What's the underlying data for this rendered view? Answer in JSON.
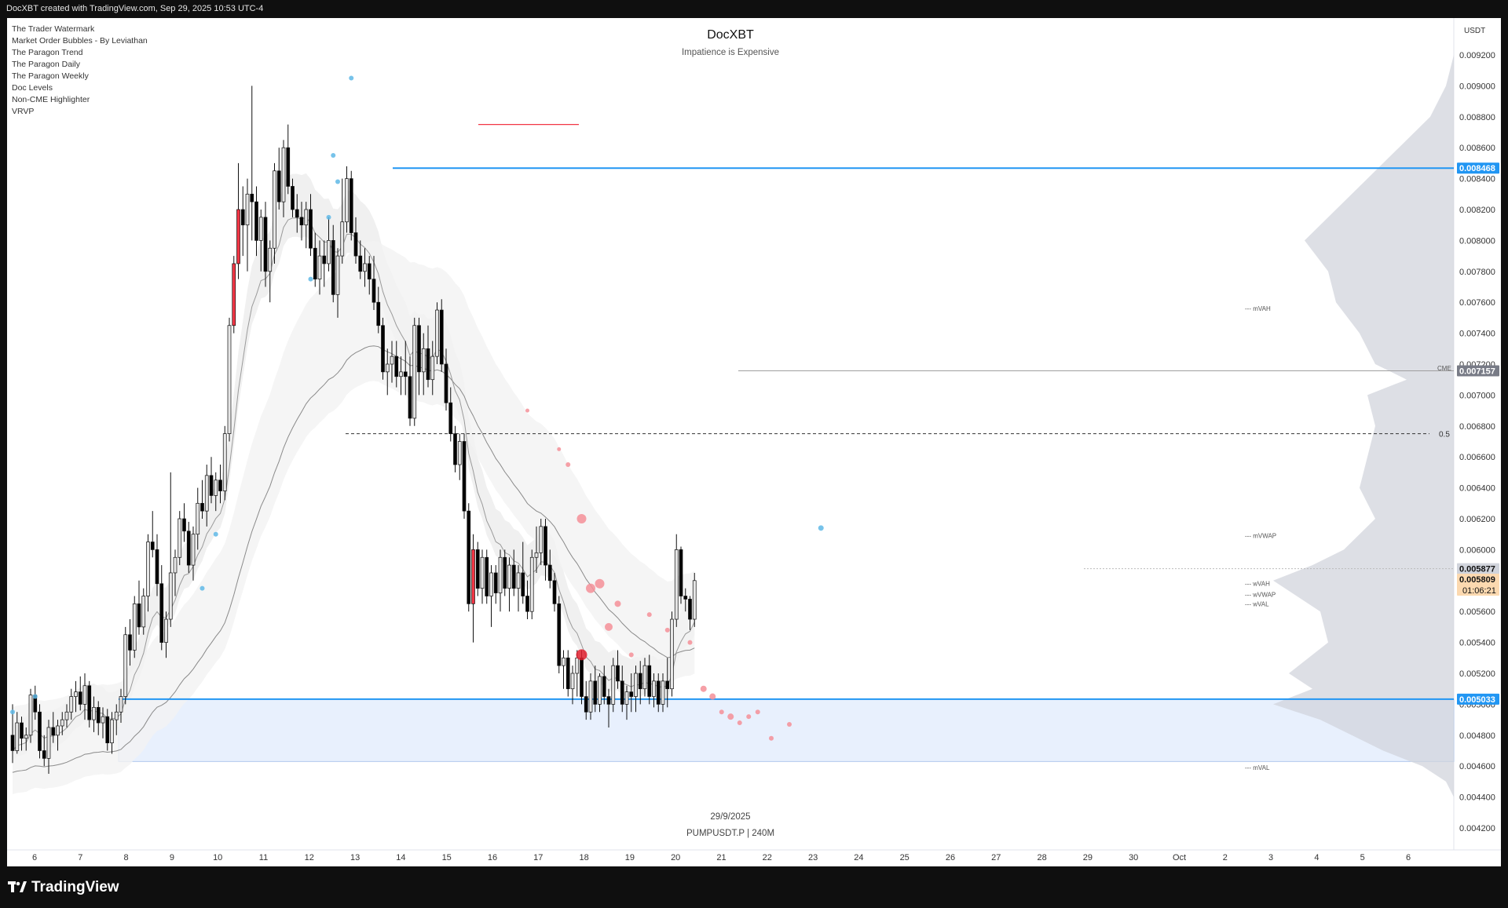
{
  "header": {
    "attribution": "DocXBT created with TradingView.com, Sep 29, 2025 10:53 UTC-4"
  },
  "indicators": [
    "The Trader Watermark",
    "Market Order Bubbles - By Leviathan",
    "The Paragon Trend",
    "The Paragon Daily",
    "The Paragon Weekly",
    "Doc Levels",
    "Non-CME Highlighter",
    "VRVP"
  ],
  "title": {
    "main": "DocXBT",
    "sub": "Impatience is Expensive"
  },
  "footer": {
    "date": "29/9/2025",
    "symbol": "PUMPUSDT.P | 240M"
  },
  "brand": {
    "name": "TradingView",
    "colors": {
      "background": "#0f0f0f",
      "chart_bg": "#ffffff",
      "level_blue": "#2196f3",
      "bear_candle": "#000000",
      "bull_candle": "#e6e6e6",
      "red_candle": "#f23645"
    }
  },
  "chart_data": {
    "type": "candlestick",
    "currency": "USDT",
    "timeframe": "240M",
    "ylim": [
      0.0041,
      0.0093
    ],
    "y_ticks": [
      "0.009200",
      "0.009000",
      "0.008800",
      "0.008600",
      "0.008400",
      "0.008200",
      "0.008000",
      "0.007800",
      "0.007600",
      "0.007400",
      "0.007200",
      "0.007000",
      "0.006800",
      "0.006600",
      "0.006400",
      "0.006200",
      "0.006000",
      "0.005800",
      "0.005600",
      "0.005400",
      "0.005200",
      "0.005000",
      "0.004800",
      "0.004600",
      "0.004400",
      "0.004200"
    ],
    "x_ticks": [
      "6",
      "7",
      "8",
      "9",
      "10",
      "11",
      "12",
      "13",
      "14",
      "15",
      "16",
      "17",
      "18",
      "19",
      "20",
      "21",
      "22",
      "23",
      "24",
      "25",
      "26",
      "27",
      "28",
      "29",
      "30",
      "Oct",
      "2",
      "3",
      "4",
      "5",
      "6"
    ],
    "price_tags": [
      {
        "label": "0.008468",
        "value": 0.008468,
        "color": "#2196f3"
      },
      {
        "label": "0.007157",
        "value": 0.007157,
        "color": "#787b86"
      },
      {
        "label": "0.005877",
        "value": 0.005877,
        "color": "#d1d4dc"
      },
      {
        "label": "0.005809",
        "value": 0.005809,
        "color": "#fcd9b0",
        "sub": "01:06:21"
      },
      {
        "label": "0.005033",
        "value": 0.005033,
        "color": "#2196f3"
      }
    ],
    "levels": [
      {
        "name": "resistance",
        "value": 0.008468
      },
      {
        "name": "support",
        "value": 0.005033
      },
      {
        "name": "range-low",
        "value": 0.00463
      },
      {
        "name": "cme-gap",
        "value": 0.007157
      },
      {
        "name": "fib-0.5",
        "value": 0.00675,
        "label": "0.5"
      }
    ],
    "annotations": [
      {
        "text": "mVAH",
        "value": 0.00756
      },
      {
        "text": "CME",
        "value": 0.007175
      },
      {
        "text": "mVWAP",
        "value": 0.00609
      },
      {
        "text": "wVAH",
        "value": 0.00578
      },
      {
        "text": "wVWAP",
        "value": 0.00571
      },
      {
        "text": "wVAL",
        "value": 0.00565
      },
      {
        "text": "mVAL",
        "value": 0.00459
      }
    ],
    "candles": [
      [
        0.0048,
        0.005,
        0.00462,
        0.0047
      ],
      [
        0.0047,
        0.00495,
        0.00468,
        0.00488
      ],
      [
        0.00488,
        0.00492,
        0.0047,
        0.00478
      ],
      [
        0.00478,
        0.00485,
        0.0047,
        0.0048
      ],
      [
        0.0048,
        0.0051,
        0.00475,
        0.00506
      ],
      [
        0.00506,
        0.00512,
        0.0049,
        0.00495
      ],
      [
        0.00495,
        0.005,
        0.00465,
        0.0047
      ],
      [
        0.0047,
        0.0048,
        0.0046,
        0.00465
      ],
      [
        0.00465,
        0.0049,
        0.00455,
        0.00485
      ],
      [
        0.00485,
        0.00495,
        0.00475,
        0.0048
      ],
      [
        0.0048,
        0.0049,
        0.0047,
        0.00486
      ],
      [
        0.00486,
        0.00495,
        0.0048,
        0.0049
      ],
      [
        0.0049,
        0.005,
        0.00485,
        0.00495
      ],
      [
        0.00495,
        0.0051,
        0.0049,
        0.00505
      ],
      [
        0.00505,
        0.00515,
        0.00495,
        0.00508
      ],
      [
        0.00508,
        0.00518,
        0.00496,
        0.005
      ],
      [
        0.005,
        0.0052,
        0.0049,
        0.00512
      ],
      [
        0.00512,
        0.00515,
        0.00485,
        0.0049
      ],
      [
        0.0049,
        0.00505,
        0.00482,
        0.00498
      ],
      [
        0.00498,
        0.00502,
        0.0048,
        0.00488
      ],
      [
        0.00488,
        0.00498,
        0.00478,
        0.00492
      ],
      [
        0.00492,
        0.00497,
        0.0047,
        0.00475
      ],
      [
        0.00475,
        0.00495,
        0.00468,
        0.0049
      ],
      [
        0.0049,
        0.005,
        0.0048,
        0.00495
      ],
      [
        0.00495,
        0.0051,
        0.00488,
        0.00505
      ],
      [
        0.00505,
        0.0055,
        0.005,
        0.00545
      ],
      [
        0.00545,
        0.00555,
        0.00525,
        0.00535
      ],
      [
        0.00535,
        0.0057,
        0.0053,
        0.00565
      ],
      [
        0.00565,
        0.0058,
        0.00545,
        0.0055
      ],
      [
        0.0055,
        0.00575,
        0.00545,
        0.0057
      ],
      [
        0.0057,
        0.0061,
        0.0056,
        0.00605
      ],
      [
        0.00605,
        0.00625,
        0.00595,
        0.006
      ],
      [
        0.006,
        0.0061,
        0.0057,
        0.00578
      ],
      [
        0.00578,
        0.0059,
        0.00535,
        0.0054
      ],
      [
        0.0054,
        0.0056,
        0.0053,
        0.00555
      ],
      [
        0.00555,
        0.0065,
        0.0055,
        0.00585
      ],
      [
        0.00585,
        0.006,
        0.0057,
        0.00595
      ],
      [
        0.00595,
        0.00625,
        0.0059,
        0.0062
      ],
      [
        0.0062,
        0.0063,
        0.00605,
        0.00612
      ],
      [
        0.00612,
        0.00618,
        0.00585,
        0.0059
      ],
      [
        0.0059,
        0.00615,
        0.0058,
        0.0061
      ],
      [
        0.0061,
        0.0064,
        0.006,
        0.0063
      ],
      [
        0.0063,
        0.00645,
        0.0062,
        0.00625
      ],
      [
        0.00625,
        0.00655,
        0.00615,
        0.00648
      ],
      [
        0.00648,
        0.0066,
        0.0063,
        0.00635
      ],
      [
        0.00635,
        0.0065,
        0.00625,
        0.00645
      ],
      [
        0.00645,
        0.00655,
        0.0063,
        0.00638
      ],
      [
        0.00638,
        0.0068,
        0.00632,
        0.00675
      ],
      [
        0.00675,
        0.0075,
        0.0067,
        0.00745
      ],
      [
        0.00745,
        0.0079,
        0.0074,
        0.00785
      ],
      [
        0.00785,
        0.0085,
        0.00775,
        0.0082
      ],
      [
        0.0082,
        0.00835,
        0.0079,
        0.0081
      ],
      [
        0.0081,
        0.0084,
        0.0078,
        0.0083
      ],
      [
        0.0083,
        0.009,
        0.008,
        0.00825
      ],
      [
        0.00825,
        0.00835,
        0.0079,
        0.008
      ],
      [
        0.008,
        0.0082,
        0.0078,
        0.00815
      ],
      [
        0.00815,
        0.00825,
        0.0077,
        0.0078
      ],
      [
        0.0078,
        0.008,
        0.0076,
        0.00795
      ],
      [
        0.00795,
        0.0085,
        0.00785,
        0.00845
      ],
      [
        0.00845,
        0.0086,
        0.0082,
        0.00825
      ],
      [
        0.00825,
        0.00865,
        0.00815,
        0.0086
      ],
      [
        0.0086,
        0.00875,
        0.0083,
        0.00835
      ],
      [
        0.00835,
        0.0084,
        0.00815,
        0.0082
      ],
      [
        0.0082,
        0.0083,
        0.00805,
        0.00815
      ],
      [
        0.00815,
        0.00825,
        0.008,
        0.0081
      ],
      [
        0.0081,
        0.00825,
        0.00795,
        0.0082
      ],
      [
        0.0082,
        0.0083,
        0.0079,
        0.00795
      ],
      [
        0.00795,
        0.00805,
        0.0077,
        0.00775
      ],
      [
        0.00775,
        0.008,
        0.00765,
        0.0079
      ],
      [
        0.0079,
        0.008,
        0.0077,
        0.00785
      ],
      [
        0.00785,
        0.00815,
        0.0078,
        0.008
      ],
      [
        0.008,
        0.0081,
        0.0076,
        0.00765
      ],
      [
        0.00765,
        0.00795,
        0.0075,
        0.0079
      ],
      [
        0.0079,
        0.0084,
        0.00785,
        0.00812
      ],
      [
        0.00812,
        0.00848,
        0.00805,
        0.0084
      ],
      [
        0.0084,
        0.00845,
        0.008,
        0.00805
      ],
      [
        0.00805,
        0.00815,
        0.00785,
        0.0079
      ],
      [
        0.0079,
        0.008,
        0.00775,
        0.0078
      ],
      [
        0.0078,
        0.00795,
        0.0077,
        0.00785
      ],
      [
        0.00785,
        0.0079,
        0.00765,
        0.00775
      ],
      [
        0.00775,
        0.0079,
        0.00755,
        0.0076
      ],
      [
        0.0076,
        0.0077,
        0.0074,
        0.00745
      ],
      [
        0.00745,
        0.0075,
        0.0071,
        0.00715
      ],
      [
        0.00715,
        0.0073,
        0.007,
        0.0072
      ],
      [
        0.0072,
        0.00735,
        0.00708,
        0.00725
      ],
      [
        0.00725,
        0.00735,
        0.00705,
        0.00712
      ],
      [
        0.00712,
        0.00725,
        0.007,
        0.00715
      ],
      [
        0.00715,
        0.00735,
        0.007,
        0.00712
      ],
      [
        0.00712,
        0.00725,
        0.0068,
        0.00685
      ],
      [
        0.00685,
        0.0075,
        0.0068,
        0.00745
      ],
      [
        0.00745,
        0.0075,
        0.007,
        0.00715
      ],
      [
        0.00715,
        0.0074,
        0.007,
        0.0073
      ],
      [
        0.0073,
        0.00745,
        0.00705,
        0.0071
      ],
      [
        0.0071,
        0.00735,
        0.007,
        0.00725
      ],
      [
        0.00725,
        0.0076,
        0.0072,
        0.00755
      ],
      [
        0.00755,
        0.00762,
        0.00715,
        0.0072
      ],
      [
        0.0072,
        0.0073,
        0.0069,
        0.00695
      ],
      [
        0.00695,
        0.00705,
        0.0067,
        0.00675
      ],
      [
        0.00675,
        0.0068,
        0.0065,
        0.00655
      ],
      [
        0.00655,
        0.00675,
        0.00645,
        0.0067
      ],
      [
        0.0067,
        0.00675,
        0.0062,
        0.00625
      ],
      [
        0.00625,
        0.0063,
        0.0056,
        0.00565
      ],
      [
        0.00565,
        0.0061,
        0.0054,
        0.006
      ],
      [
        0.006,
        0.00605,
        0.0057,
        0.00575
      ],
      [
        0.00575,
        0.006,
        0.00565,
        0.00595
      ],
      [
        0.00595,
        0.006,
        0.00565,
        0.0057
      ],
      [
        0.0057,
        0.0059,
        0.0055,
        0.00585
      ],
      [
        0.00585,
        0.0059,
        0.00565,
        0.00572
      ],
      [
        0.00572,
        0.006,
        0.0056,
        0.00595
      ],
      [
        0.00595,
        0.006,
        0.0057,
        0.00575
      ],
      [
        0.00575,
        0.00595,
        0.0056,
        0.0059
      ],
      [
        0.0059,
        0.006,
        0.0057,
        0.00575
      ],
      [
        0.00575,
        0.0059,
        0.0056,
        0.00585
      ],
      [
        0.00585,
        0.00605,
        0.00565,
        0.0057
      ],
      [
        0.0057,
        0.0058,
        0.00555,
        0.0056
      ],
      [
        0.0056,
        0.006,
        0.00555,
        0.00595
      ],
      [
        0.00595,
        0.00615,
        0.00585,
        0.00598
      ],
      [
        0.00598,
        0.0062,
        0.0059,
        0.00615
      ],
      [
        0.00615,
        0.0062,
        0.0058,
        0.0059
      ],
      [
        0.0059,
        0.006,
        0.00575,
        0.0058
      ],
      [
        0.0058,
        0.00585,
        0.0056,
        0.00565
      ],
      [
        0.00565,
        0.0057,
        0.0052,
        0.00525
      ],
      [
        0.00525,
        0.00535,
        0.0051,
        0.0053
      ],
      [
        0.0053,
        0.00535,
        0.00505,
        0.0051
      ],
      [
        0.0051,
        0.00525,
        0.005,
        0.0052
      ],
      [
        0.0052,
        0.00535,
        0.00505,
        0.0053
      ],
      [
        0.0053,
        0.00535,
        0.005,
        0.00505
      ],
      [
        0.00505,
        0.00515,
        0.0049,
        0.00495
      ],
      [
        0.00495,
        0.0052,
        0.0049,
        0.00515
      ],
      [
        0.00515,
        0.00525,
        0.00495,
        0.005
      ],
      [
        0.005,
        0.0052,
        0.00495,
        0.00518
      ],
      [
        0.00518,
        0.00525,
        0.005,
        0.00505
      ],
      [
        0.00505,
        0.0051,
        0.00485,
        0.005
      ],
      [
        0.005,
        0.0053,
        0.00495,
        0.00525
      ],
      [
        0.00525,
        0.00535,
        0.0051,
        0.00515
      ],
      [
        0.00515,
        0.00525,
        0.00495,
        0.005
      ],
      [
        0.005,
        0.00512,
        0.0049,
        0.00508
      ],
      [
        0.00508,
        0.0052,
        0.00495,
        0.00505
      ],
      [
        0.00505,
        0.00525,
        0.00495,
        0.0052
      ],
      [
        0.0052,
        0.00528,
        0.005,
        0.0051
      ],
      [
        0.0051,
        0.0053,
        0.00505,
        0.00525
      ],
      [
        0.00525,
        0.00532,
        0.005,
        0.00505
      ],
      [
        0.00505,
        0.0052,
        0.00498,
        0.00515
      ],
      [
        0.00515,
        0.0052,
        0.00495,
        0.005
      ],
      [
        0.005,
        0.0052,
        0.00495,
        0.00515
      ],
      [
        0.00515,
        0.0053,
        0.00498,
        0.0051
      ],
      [
        0.0051,
        0.0056,
        0.00505,
        0.00555
      ],
      [
        0.00555,
        0.0061,
        0.0055,
        0.006
      ],
      [
        0.006,
        0.00602,
        0.00565,
        0.0057
      ],
      [
        0.0057,
        0.00575,
        0.0056,
        0.00568
      ],
      [
        0.00568,
        0.0057,
        0.00548,
        0.00555
      ],
      [
        0.00555,
        0.00585,
        0.0055,
        0.0058
      ]
    ]
  }
}
